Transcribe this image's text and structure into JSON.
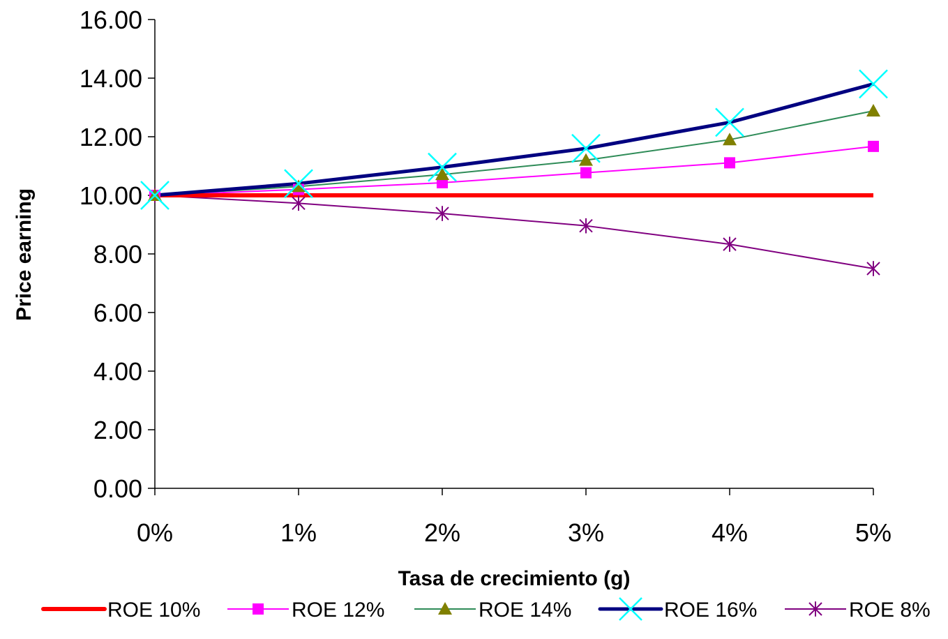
{
  "chart_data": {
    "type": "line",
    "title": "",
    "xlabel": "Tasa de crecimiento (g)",
    "ylabel": "Price earning",
    "ylim": [
      0,
      16
    ],
    "yticks": [
      "0.00",
      "2.00",
      "4.00",
      "6.00",
      "8.00",
      "10.00",
      "12.00",
      "14.00",
      "16.00"
    ],
    "categories": [
      "0%",
      "1%",
      "2%",
      "3%",
      "4%",
      "5%"
    ],
    "grid": false,
    "legend_position": "bottom",
    "series": [
      {
        "name": "ROE 10%",
        "color": "#ff0000",
        "marker": "none",
        "values": [
          10.0,
          10.0,
          10.0,
          10.0,
          10.0,
          10.0
        ]
      },
      {
        "name": "ROE 12%",
        "color": "#ff00ff",
        "marker": "square",
        "values": [
          10.0,
          10.2,
          10.43,
          10.77,
          11.11,
          11.67
        ]
      },
      {
        "name": "ROE 14%",
        "color": "#2e8b57",
        "line_color": "#2e8b57",
        "marker_color": "#808000",
        "marker": "triangle",
        "values": [
          10.0,
          10.3,
          10.71,
          11.2,
          11.9,
          12.88
        ]
      },
      {
        "name": "ROE 16%",
        "color": "#000080",
        "marker_color": "#00ffff",
        "marker": "x",
        "values": [
          10.0,
          10.4,
          10.96,
          11.6,
          12.49,
          13.8
        ]
      },
      {
        "name": "ROE 8%",
        "color": "#800080",
        "marker": "asterisk",
        "values": [
          10.0,
          9.73,
          9.38,
          8.96,
          8.33,
          7.5
        ]
      }
    ]
  }
}
